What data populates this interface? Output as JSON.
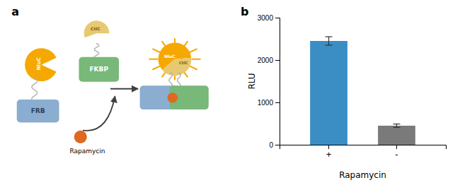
{
  "chart_data": {
    "type": "bar",
    "categories": [
      "+",
      "-"
    ],
    "values": [
      2450,
      450
    ],
    "errors": [
      100,
      40
    ],
    "colors": [
      "#3a8ec4",
      "#7a7a7a"
    ],
    "xlabel": "Rapamycin",
    "ylabel": "RLU",
    "ylim": [
      0,
      3000
    ],
    "yticks": [
      0,
      1000,
      2000,
      3000
    ],
    "annotations": [
      "a",
      "NluC",
      "FRB",
      "CtlC",
      "FKBP",
      "Rapamycin",
      "NluC",
      "CtlC",
      "b"
    ]
  }
}
